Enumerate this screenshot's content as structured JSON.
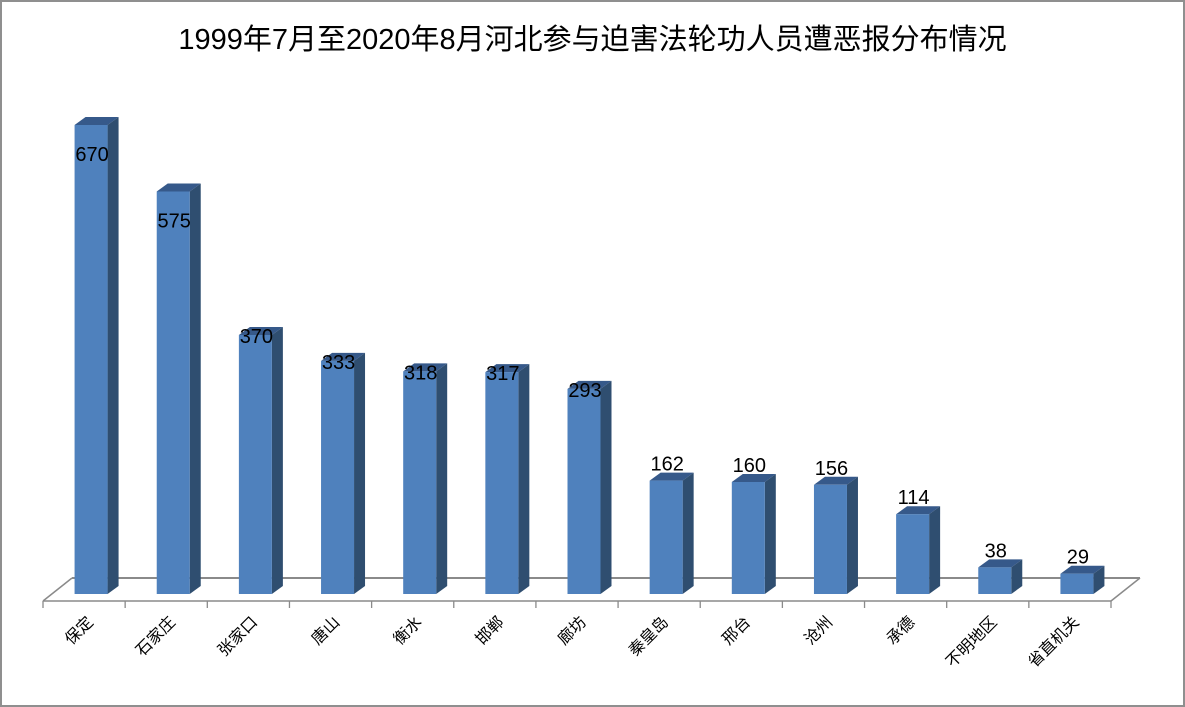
{
  "frame": {
    "background": "#ffffff",
    "border_color": "#8f8f8f"
  },
  "chart_data": {
    "type": "bar",
    "style": "3d-column",
    "title": "1999年7月至2020年8月河北参与迫害法轮功人员遭恶报分布情况",
    "categories": [
      "保定",
      "石家庄",
      "张家口",
      "唐山",
      "衡水",
      "邯郸",
      "廊坊",
      "秦皇岛",
      "邢台",
      "沧州",
      "承德",
      "不明地区",
      "省直机关"
    ],
    "values": [
      670,
      575,
      370,
      333,
      318,
      317,
      293,
      162,
      160,
      156,
      114,
      38,
      29
    ],
    "data_labels_visible": true,
    "xlabel": "",
    "ylabel": "",
    "y_axis_visible": false,
    "grid": false,
    "legend": false,
    "category_label_rotation_deg": -45,
    "colors": {
      "bar_front": "#4f81bd",
      "bar_top": "#36598a",
      "bar_side": "#2f4e70",
      "axis_line": "#8a8a8a",
      "label_text": "#000000",
      "title_text": "#000000"
    }
  }
}
